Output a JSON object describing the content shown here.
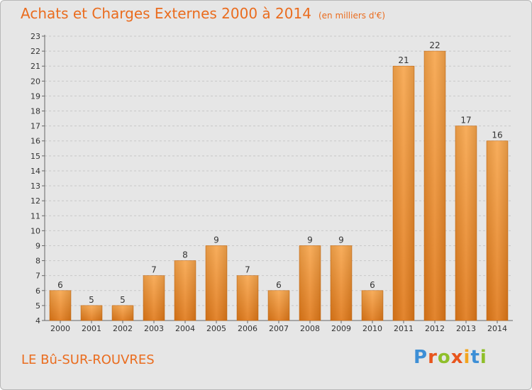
{
  "chart_data": {
    "type": "bar",
    "title": "Achats et Charges Externes 2000 à 2014",
    "subtitle": "(en milliers d'€)",
    "categories": [
      "2000",
      "2001",
      "2002",
      "2003",
      "2004",
      "2005",
      "2006",
      "2007",
      "2008",
      "2009",
      "2010",
      "2011",
      "2012",
      "2013",
      "2014"
    ],
    "values": [
      6,
      5,
      5,
      7,
      8,
      9,
      7,
      6,
      9,
      9,
      6,
      21,
      22,
      17,
      16
    ],
    "ylim": [
      4,
      23
    ],
    "yticks": [
      4,
      5,
      6,
      7,
      8,
      9,
      10,
      11,
      12,
      13,
      14,
      15,
      16,
      17,
      18,
      19,
      20,
      21,
      22,
      23
    ],
    "grid": true,
    "bar_color": "#f09538",
    "data_labels": true
  },
  "commune": "LE Bû-SUR-ROUVRES",
  "logo": {
    "letters": [
      "P",
      "r",
      "o",
      "x",
      "i",
      "t",
      "i"
    ],
    "colors": [
      "#3d8fd6",
      "#e8551d",
      "#8fbf2a",
      "#e8551d",
      "#f3a51f",
      "#3d8fd6",
      "#8fbf2a"
    ]
  }
}
